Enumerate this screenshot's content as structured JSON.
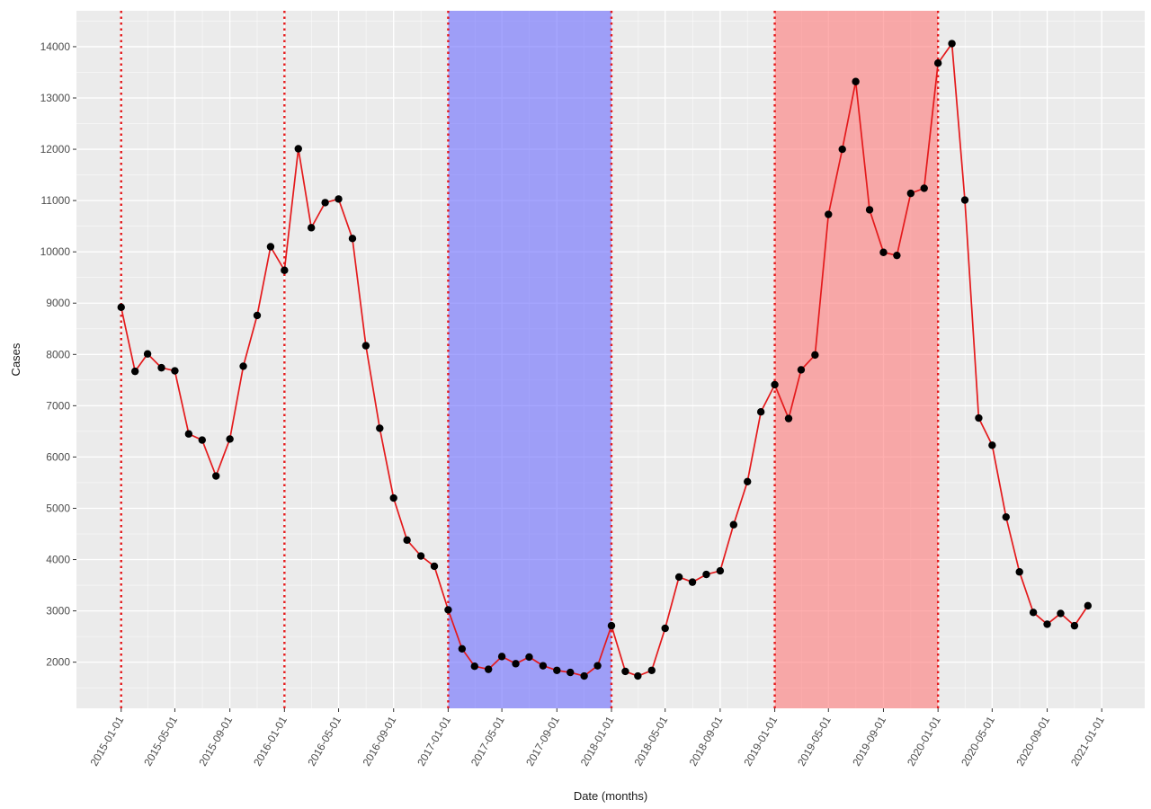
{
  "chart_data": {
    "type": "line",
    "title": "",
    "xlabel": "Date (months)",
    "ylabel": "Cases",
    "ylim": [
      1100,
      14700
    ],
    "xlim": [
      "2014-09-23",
      "2021-04-07"
    ],
    "grid": true,
    "y_ticks": [
      2000,
      3000,
      4000,
      5000,
      6000,
      7000,
      8000,
      9000,
      10000,
      11000,
      12000,
      13000,
      14000
    ],
    "x_ticks": [
      "2015-01-01",
      "2015-05-01",
      "2015-09-01",
      "2016-01-01",
      "2016-05-01",
      "2016-09-01",
      "2017-01-01",
      "2017-05-01",
      "2017-09-01",
      "2018-01-01",
      "2018-05-01",
      "2018-09-01",
      "2019-01-01",
      "2019-05-01",
      "2019-09-01",
      "2020-01-01",
      "2020-05-01",
      "2020-09-01",
      "2021-01-01"
    ],
    "series": [
      {
        "line_color": "#e41a1c",
        "point_color": "#000000",
        "x": [
          "2015-01-01",
          "2015-02-01",
          "2015-03-01",
          "2015-04-01",
          "2015-05-01",
          "2015-06-01",
          "2015-07-01",
          "2015-08-01",
          "2015-09-01",
          "2015-10-01",
          "2015-11-01",
          "2015-12-01",
          "2016-01-01",
          "2016-02-01",
          "2016-03-01",
          "2016-04-01",
          "2016-05-01",
          "2016-06-01",
          "2016-07-01",
          "2016-08-01",
          "2016-09-01",
          "2016-10-01",
          "2016-11-01",
          "2016-12-01",
          "2017-01-01",
          "2017-02-01",
          "2017-03-01",
          "2017-04-01",
          "2017-05-01",
          "2017-06-01",
          "2017-07-01",
          "2017-08-01",
          "2017-09-01",
          "2017-10-01",
          "2017-11-01",
          "2017-12-01",
          "2018-01-01",
          "2018-02-01",
          "2018-03-01",
          "2018-04-01",
          "2018-05-01",
          "2018-06-01",
          "2018-07-01",
          "2018-08-01",
          "2018-09-01",
          "2018-10-01",
          "2018-11-01",
          "2018-12-01",
          "2019-01-01",
          "2019-02-01",
          "2019-03-01",
          "2019-04-01",
          "2019-05-01",
          "2019-06-01",
          "2019-07-01",
          "2019-08-01",
          "2019-09-01",
          "2019-10-01",
          "2019-11-01",
          "2019-12-01",
          "2020-01-01",
          "2020-02-01",
          "2020-03-01",
          "2020-04-01",
          "2020-05-01",
          "2020-06-01",
          "2020-07-01",
          "2020-08-01",
          "2020-09-01",
          "2020-10-01",
          "2020-11-01",
          "2020-12-01"
        ],
        "y": [
          8920,
          7670,
          8010,
          7740,
          7680,
          6450,
          6330,
          5630,
          6350,
          7770,
          8760,
          10100,
          9640,
          12010,
          10470,
          10960,
          11030,
          10260,
          8170,
          6560,
          5200,
          4380,
          4070,
          3870,
          3020,
          2260,
          1920,
          1860,
          2110,
          1970,
          2100,
          1930,
          1840,
          1800,
          1730,
          1930,
          2710,
          1820,
          1730,
          1840,
          2660,
          3660,
          3560,
          3710,
          3780,
          4680,
          5520,
          6880,
          7410,
          6750,
          7700,
          7990,
          10730,
          12000,
          13320,
          10820,
          9990,
          9930,
          11140,
          11240,
          13680,
          14060,
          11010,
          6760,
          6230,
          4830,
          3760,
          2970,
          2740,
          2950,
          2710,
          3100
        ]
      }
    ],
    "highlight_bands": [
      {
        "start": "2017-01-01",
        "end": "2018-01-01",
        "color": "#6b6bff"
      },
      {
        "start": "2019-01-01",
        "end": "2020-01-01",
        "color": "#ff7a7a"
      }
    ],
    "vertical_lines": {
      "dates": [
        "2015-01-01",
        "2016-01-01",
        "2017-01-01",
        "2018-01-01",
        "2019-01-01",
        "2020-01-01"
      ],
      "style": "dotted",
      "color": "#e41a1c"
    },
    "colors": {
      "panel_background": "#ebebeb",
      "grid_major": "#ffffff",
      "line": "#e41a1c",
      "points": "#000000"
    }
  }
}
